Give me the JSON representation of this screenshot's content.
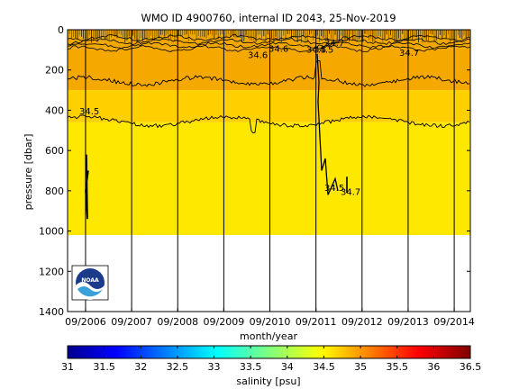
{
  "chart_data": {
    "type": "heatmap",
    "title": "WMO ID 4900760, internal ID 2043, 25-Nov-2019",
    "xlabel": "month/year",
    "ylabel": "pressure [dbar]",
    "x_ticks": [
      "09/2006",
      "09/2007",
      "09/2008",
      "09/2009",
      "09/2010",
      "09/2011",
      "09/2012",
      "09/2013",
      "09/2014"
    ],
    "y_ticks": [
      0,
      200,
      400,
      600,
      800,
      1000,
      1200,
      1400
    ],
    "y_axis_reversed": true,
    "ylim": [
      0,
      1400
    ],
    "xlim": [
      "05/2006",
      "02/2015"
    ],
    "colorbar": {
      "label": "salinity [psu]",
      "min": 31,
      "max": 36.5,
      "ticks": [
        31,
        31.5,
        32,
        32.5,
        33,
        33.5,
        34,
        34.5,
        35,
        35.5,
        36,
        36.5
      ]
    },
    "salinity_bands": [
      {
        "range_dbar": [
          0,
          90
        ],
        "salinity": "mixed 33.5-34.8",
        "color": "#f0a800"
      },
      {
        "range_dbar": [
          90,
          300
        ],
        "salinity": 34.7,
        "color": "#f5a800"
      },
      {
        "range_dbar": [
          300,
          460
        ],
        "salinity": 34.5,
        "color": "#ffd000"
      },
      {
        "range_dbar": [
          460,
          1020
        ],
        "salinity": 34.4,
        "color": "#ffe800"
      }
    ],
    "contour_labels": [
      "34.6",
      "34.6",
      "34.5",
      "34.5",
      "34.5",
      "34.5",
      "34.7",
      "34.7",
      "34.7"
    ],
    "profile_dividers_year_fraction": [
      2006.75,
      2007.75,
      2008.75,
      2009.75,
      2010.75,
      2011.75,
      2012.75,
      2013.75,
      2014.75
    ],
    "data_max_pressure_dbar": 1020
  },
  "logo": {
    "alt": "NOAA",
    "text": "NOAA"
  }
}
